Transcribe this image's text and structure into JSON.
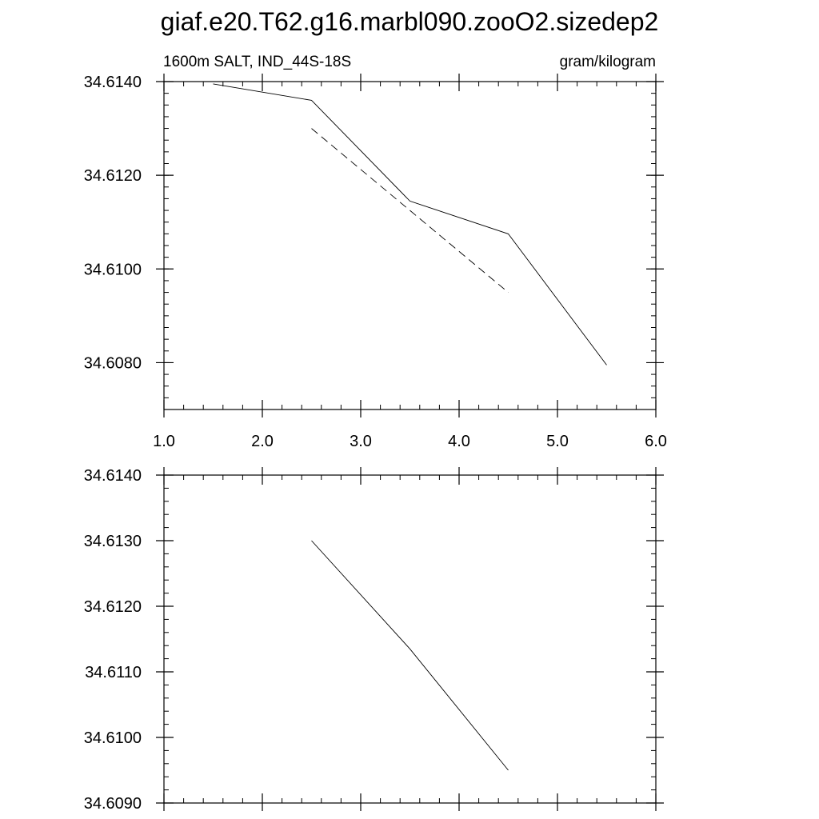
{
  "title": "giaf.e20.T62.g16.marbl090.zooO2.sizedep2",
  "chart_data": [
    {
      "type": "line",
      "left_label": "1600m SALT, IND_44S-18S",
      "right_label": "gram/kilogram",
      "xlim": [
        1.0,
        6.0
      ],
      "ylim": [
        34.607,
        34.614
      ],
      "x_ticks": [
        1.0,
        2.0,
        3.0,
        4.0,
        5.0,
        6.0
      ],
      "x_tick_labels": [
        "1.0",
        "2.0",
        "3.0",
        "4.0",
        "5.0",
        "6.0"
      ],
      "y_ticks": [
        34.608,
        34.61,
        34.612,
        34.614
      ],
      "y_tick_labels": [
        "34.6080",
        "34.6100",
        "34.6120",
        "34.6140"
      ],
      "series": [
        {
          "style": "solid",
          "color": "#000000",
          "x": [
            1.5,
            2.5,
            3.5,
            4.5,
            5.5
          ],
          "y": [
            34.61395,
            34.6136,
            34.61145,
            34.61075,
            34.60795
          ]
        },
        {
          "style": "dashed",
          "color": "#000000",
          "x": [
            2.5,
            4.5
          ],
          "y": [
            34.613,
            34.6095
          ]
        }
      ]
    },
    {
      "type": "line",
      "xlim": [
        1.0,
        6.0
      ],
      "ylim": [
        34.609,
        34.614
      ],
      "x_ticks": [
        1.0,
        2.0,
        3.0,
        4.0,
        5.0,
        6.0
      ],
      "y_ticks": [
        34.609,
        34.61,
        34.611,
        34.612,
        34.613,
        34.614
      ],
      "y_tick_labels": [
        "34.6090",
        "34.6100",
        "34.6110",
        "34.6120",
        "34.6130",
        "34.6140"
      ],
      "series": [
        {
          "style": "solid",
          "color": "#000000",
          "x": [
            2.5,
            3.5,
            4.5
          ],
          "y": [
            34.613,
            34.61135,
            34.6095
          ]
        }
      ]
    }
  ]
}
